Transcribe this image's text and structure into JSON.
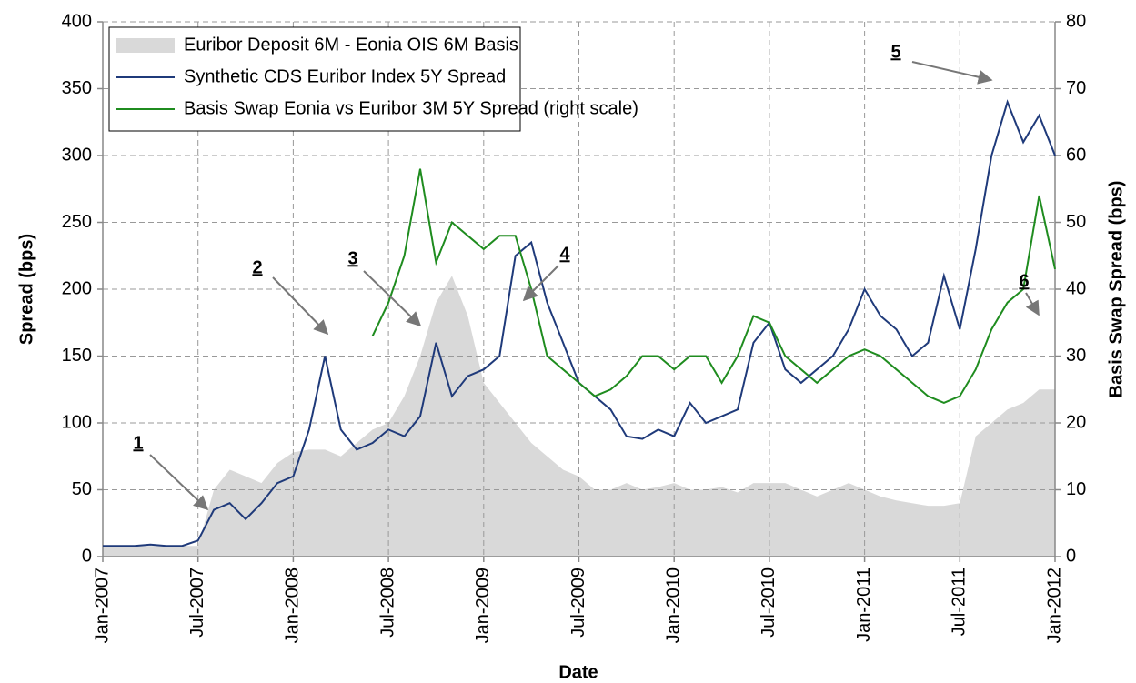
{
  "chart_data": {
    "type": "line",
    "x_label": "Date",
    "y_label": "Spread (bps)",
    "y2_label": "Basis Swap Spread (bps)",
    "x": [
      "2007-01",
      "2007-02",
      "2007-03",
      "2007-04",
      "2007-05",
      "2007-06",
      "2007-07",
      "2007-08",
      "2007-09",
      "2007-10",
      "2007-11",
      "2007-12",
      "2008-01",
      "2008-02",
      "2008-03",
      "2008-04",
      "2008-05",
      "2008-06",
      "2008-07",
      "2008-08",
      "2008-09",
      "2008-10",
      "2008-11",
      "2008-12",
      "2009-01",
      "2009-02",
      "2009-03",
      "2009-04",
      "2009-05",
      "2009-06",
      "2009-07",
      "2009-08",
      "2009-09",
      "2009-10",
      "2009-11",
      "2009-12",
      "2010-01",
      "2010-02",
      "2010-03",
      "2010-04",
      "2010-05",
      "2010-06",
      "2010-07",
      "2010-08",
      "2010-09",
      "2010-10",
      "2010-11",
      "2010-12",
      "2011-01",
      "2011-02",
      "2011-03",
      "2011-04",
      "2011-05",
      "2011-06",
      "2011-07",
      "2011-08",
      "2011-09",
      "2011-10",
      "2011-11",
      "2011-12",
      "2012-01"
    ],
    "xlim": [
      "2007-01",
      "2012-01"
    ],
    "xticks": [
      {
        "value": "2007-01",
        "label": "Jan-2007"
      },
      {
        "value": "2007-07",
        "label": "Jul-2007"
      },
      {
        "value": "2008-01",
        "label": "Jan-2008"
      },
      {
        "value": "2008-07",
        "label": "Jul-2008"
      },
      {
        "value": "2009-01",
        "label": "Jan-2009"
      },
      {
        "value": "2009-07",
        "label": "Jul-2009"
      },
      {
        "value": "2010-01",
        "label": "Jan-2010"
      },
      {
        "value": "2010-07",
        "label": "Jul-2010"
      },
      {
        "value": "2011-01",
        "label": "Jan-2011"
      },
      {
        "value": "2011-07",
        "label": "Jul-2011"
      },
      {
        "value": "2012-01",
        "label": "Jan-2012"
      }
    ],
    "ylim": [
      0,
      400
    ],
    "yticks": [
      0,
      50,
      100,
      150,
      200,
      250,
      300,
      350,
      400
    ],
    "y2lim": [
      0,
      80
    ],
    "y2ticks": [
      0,
      10,
      20,
      30,
      40,
      50,
      60,
      70,
      80
    ],
    "grid": true,
    "legend": "upper left",
    "series": [
      {
        "name": "Euribor Deposit 6M - Eonia OIS 6M Basis",
        "kind": "area",
        "color": "#d9d9d9",
        "values": [
          8,
          8,
          8,
          8,
          8,
          8,
          8,
          50,
          65,
          60,
          55,
          70,
          78,
          80,
          80,
          75,
          85,
          95,
          100,
          120,
          150,
          190,
          210,
          180,
          130,
          115,
          100,
          85,
          75,
          65,
          60,
          50,
          50,
          55,
          50,
          52,
          55,
          50,
          50,
          52,
          48,
          55,
          55,
          55,
          50,
          45,
          50,
          55,
          50,
          45,
          42,
          40,
          38,
          38,
          40,
          90,
          100,
          110,
          115,
          125,
          125
        ]
      },
      {
        "name": "Synthetic CDS Euribor Index 5Y Spread",
        "kind": "line",
        "color": "#1f3a7a",
        "values": [
          8,
          8,
          8,
          9,
          8,
          8,
          12,
          35,
          40,
          28,
          40,
          55,
          60,
          95,
          150,
          95,
          80,
          85,
          95,
          90,
          105,
          160,
          120,
          135,
          140,
          150,
          225,
          235,
          190,
          160,
          130,
          120,
          110,
          90,
          88,
          95,
          90,
          115,
          100,
          105,
          110,
          160,
          175,
          140,
          130,
          140,
          150,
          170,
          200,
          180,
          170,
          150,
          160,
          210,
          170,
          230,
          300,
          340,
          310,
          330,
          300
        ]
      },
      {
        "name": "Basis Swap Eonia vs Euribor 3M 5Y Spread (right scale)",
        "kind": "line",
        "color": "#1f8c1f",
        "axis": "y2",
        "values": [
          null,
          null,
          null,
          null,
          null,
          null,
          null,
          null,
          null,
          null,
          null,
          null,
          null,
          null,
          null,
          null,
          null,
          33,
          38,
          45,
          58,
          44,
          50,
          48,
          46,
          48,
          48,
          40,
          30,
          28,
          26,
          24,
          25,
          27,
          30,
          30,
          28,
          30,
          30,
          26,
          30,
          36,
          35,
          30,
          28,
          26,
          28,
          30,
          31,
          30,
          28,
          26,
          24,
          23,
          24,
          28,
          34,
          38,
          40,
          54,
          43
        ]
      }
    ],
    "annotations": [
      "1",
      "2",
      "3",
      "4",
      "5",
      "6"
    ]
  }
}
